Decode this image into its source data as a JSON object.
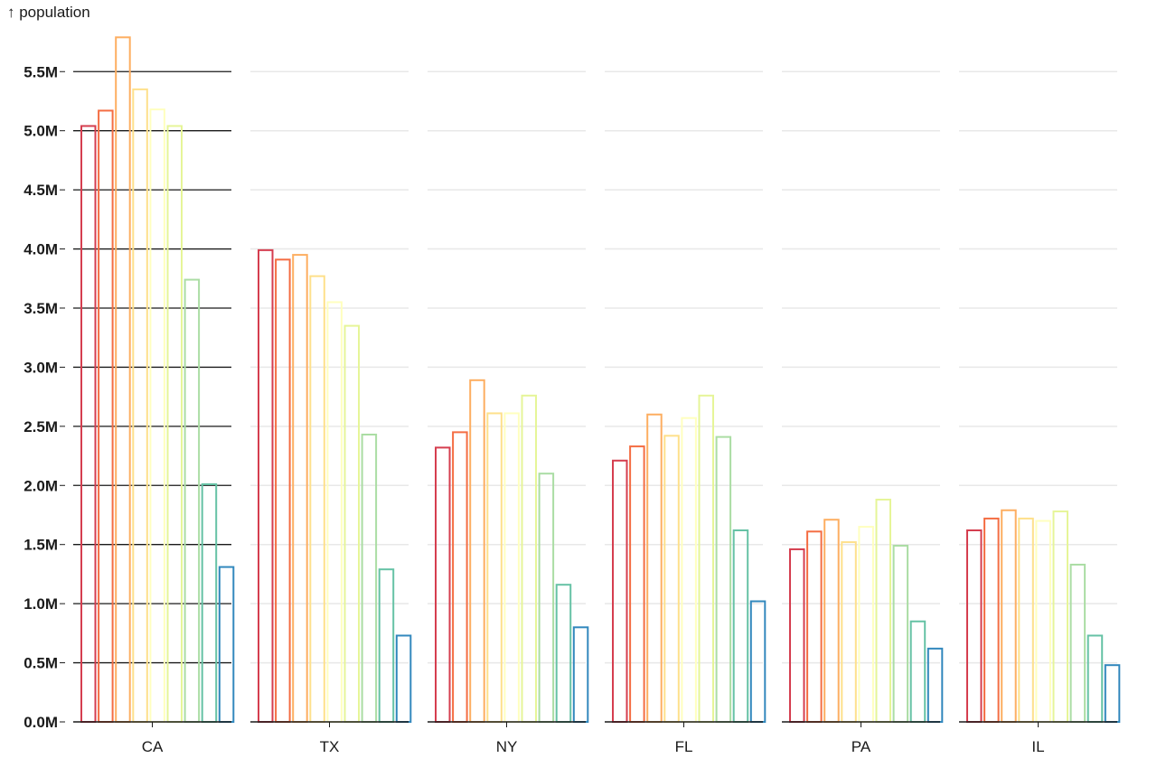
{
  "chart_data": {
    "type": "bar",
    "ylabel": "↑ population",
    "ylim": [
      0,
      5800000
    ],
    "y_ticks": [
      0,
      500000,
      1000000,
      1500000,
      2000000,
      2500000,
      3000000,
      3500000,
      4000000,
      4500000,
      5000000,
      5500000
    ],
    "y_tick_labels": [
      "0.0M",
      "0.5M",
      "1.0M",
      "1.5M",
      "2.0M",
      "2.5M",
      "3.0M",
      "3.5M",
      "4.0M",
      "4.5M",
      "5.0M",
      "5.5M"
    ],
    "grid": "horizontal",
    "categories": [
      "CA",
      "TX",
      "NY",
      "FL",
      "PA",
      "IL"
    ],
    "series_colors": [
      "#d53e4f",
      "#f46d43",
      "#fdae61",
      "#fee08b",
      "#ffffbf",
      "#e6f598",
      "#abdda4",
      "#66c2a5",
      "#3288bd"
    ],
    "values": {
      "CA": [
        5040000,
        5170000,
        5790000,
        5350000,
        5180000,
        5040000,
        3740000,
        2010000,
        1310000
      ],
      "TX": [
        3990000,
        3910000,
        3950000,
        3770000,
        3550000,
        3350000,
        2430000,
        1290000,
        730000
      ],
      "NY": [
        2320000,
        2450000,
        2890000,
        2610000,
        2610000,
        2760000,
        2100000,
        1160000,
        800000
      ],
      "FL": [
        2210000,
        2330000,
        2600000,
        2420000,
        2570000,
        2760000,
        2410000,
        1620000,
        1020000
      ],
      "PA": [
        1460000,
        1610000,
        1710000,
        1520000,
        1650000,
        1880000,
        1490000,
        850000,
        620000
      ],
      "IL": [
        1620000,
        1720000,
        1790000,
        1720000,
        1700000,
        1780000,
        1330000,
        730000,
        480000
      ]
    }
  }
}
